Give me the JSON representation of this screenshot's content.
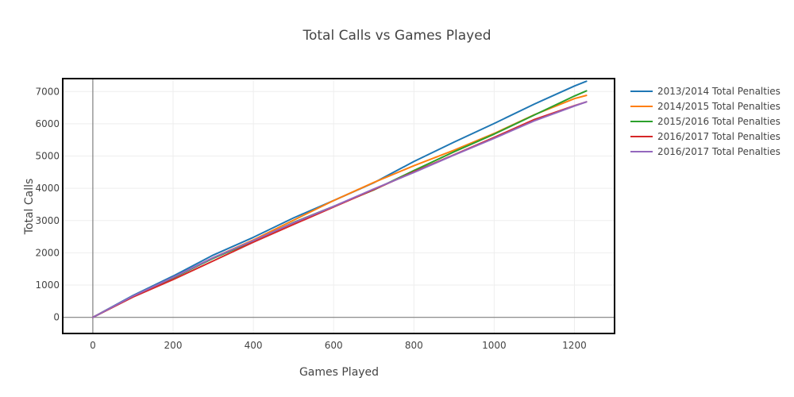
{
  "chart_data": {
    "type": "line",
    "title": "Total Calls vs Games Played",
    "xlabel": "Games Played",
    "ylabel": "Total Calls",
    "xlim": [
      -75,
      1300
    ],
    "ylim": [
      -500,
      7400
    ],
    "xticks": [
      0,
      200,
      400,
      600,
      800,
      1000,
      1200
    ],
    "yticks": [
      0,
      1000,
      2000,
      3000,
      4000,
      5000,
      6000,
      7000
    ],
    "grid": true,
    "legend_position": "right",
    "series": [
      {
        "name": "2013/2014 Total Penalties",
        "color": "#1f77b4",
        "x": [
          0,
          100,
          200,
          300,
          400,
          500,
          600,
          700,
          800,
          900,
          1000,
          1100,
          1200,
          1230
        ],
        "y": [
          0,
          680,
          1280,
          1930,
          2480,
          3080,
          3620,
          4170,
          4830,
          5430,
          6010,
          6610,
          7170,
          7320
        ]
      },
      {
        "name": "2014/2015 Total Penalties",
        "color": "#ff7f0e",
        "x": [
          0,
          100,
          200,
          300,
          400,
          500,
          600,
          700,
          800,
          900,
          1000,
          1100,
          1200,
          1230
        ],
        "y": [
          0,
          650,
          1230,
          1850,
          2400,
          3010,
          3620,
          4180,
          4700,
          5180,
          5700,
          6280,
          6780,
          6880
        ]
      },
      {
        "name": "2015/2016 Total Penalties",
        "color": "#2ca02c",
        "x": [
          0,
          100,
          200,
          300,
          400,
          500,
          600,
          700,
          800,
          900,
          1000,
          1100,
          1200,
          1230
        ],
        "y": [
          0,
          640,
          1220,
          1830,
          2360,
          2940,
          3440,
          3950,
          4550,
          5130,
          5680,
          6270,
          6860,
          7020
        ]
      },
      {
        "name": "2016/2017 Total Penalties",
        "color": "#d62728",
        "x": [
          0,
          100,
          200,
          300,
          400,
          500,
          600,
          700,
          800,
          900,
          1000,
          1100,
          1200,
          1230
        ],
        "y": [
          0,
          630,
          1170,
          1750,
          2330,
          2880,
          3420,
          3960,
          4510,
          5040,
          5580,
          6130,
          6560,
          6680
        ]
      },
      {
        "name": "2016/2017 Total Penalties",
        "color": "#9467bd",
        "x": [
          0,
          100,
          200,
          300,
          400,
          500,
          600,
          700,
          800,
          900,
          1000,
          1100,
          1200,
          1230
        ],
        "y": [
          0,
          660,
          1240,
          1850,
          2380,
          2930,
          3440,
          3980,
          4490,
          5030,
          5550,
          6090,
          6550,
          6680
        ]
      }
    ]
  }
}
